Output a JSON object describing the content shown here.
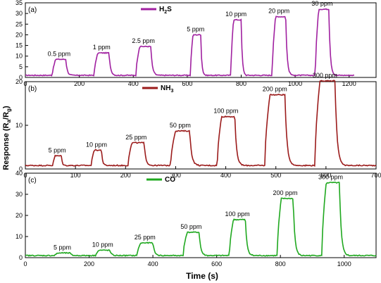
{
  "figure": {
    "ylabel_main": "Response (R",
    "ylabel_sub_a": "a",
    "ylabel_mid": "/R",
    "ylabel_sub_g": "g",
    "ylabel_end": ")",
    "xlabel": "Time (s)"
  },
  "chart_data": [
    {
      "type": "line",
      "panel_label": "(a)",
      "legend": {
        "name_main": "H",
        "name_sub": "2",
        "name_end": "S",
        "placement": "top-center"
      },
      "color": "#a020a0",
      "xlim": [
        0,
        1300
      ],
      "ylim": [
        0,
        35
      ],
      "xticks": [
        0,
        200,
        400,
        600,
        800,
        1000,
        1200
      ],
      "yticks": [
        0,
        5,
        10,
        15,
        20,
        25,
        30,
        35
      ],
      "xtick_labels": [
        "0",
        "200",
        "400",
        "600",
        "800",
        "1000",
        "1200"
      ],
      "ytick_labels": [
        "0",
        "5",
        "10",
        "15",
        "20",
        "25",
        "30",
        "35"
      ],
      "baseline": 1.0,
      "x_end": 1220,
      "pulses": [
        {
          "label": "0.5 ppm",
          "on": 100,
          "off": 150,
          "peak": 8.5
        },
        {
          "label": "1 ppm",
          "on": 255,
          "off": 310,
          "peak": 11.5
        },
        {
          "label": "2.5 ppm",
          "on": 410,
          "off": 465,
          "peak": 14.5
        },
        {
          "label": "5 ppm",
          "on": 612,
          "off": 650,
          "peak": 20
        },
        {
          "label": "10 ppm",
          "on": 762,
          "off": 800,
          "peak": 27
        },
        {
          "label": "20 ppm",
          "on": 915,
          "off": 965,
          "peak": 28.5
        },
        {
          "label": "30 ppm",
          "on": 1075,
          "off": 1125,
          "peak": 32
        }
      ]
    },
    {
      "type": "line",
      "panel_label": "(b)",
      "legend": {
        "name_main": "NH",
        "name_sub": "3",
        "name_end": "",
        "placement": "top-center"
      },
      "color": "#9b1b1b",
      "xlim": [
        0,
        700
      ],
      "ylim": [
        0,
        20
      ],
      "xticks": [
        0,
        100,
        200,
        300,
        400,
        500,
        600,
        700
      ],
      "yticks": [
        0,
        10,
        20
      ],
      "xtick_labels": [
        "0",
        "100",
        "200",
        "300",
        "400",
        "500",
        "600",
        "700"
      ],
      "ytick_labels": [
        "0",
        "10",
        "20"
      ],
      "baseline": 0.8,
      "x_end": 700,
      "pulses": [
        {
          "label": "5 ppm",
          "on": 55,
          "off": 72,
          "peak": 3.0
        },
        {
          "label": "10 ppm",
          "on": 132,
          "off": 152,
          "peak": 4.3
        },
        {
          "label": "25 ppm",
          "on": 205,
          "off": 237,
          "peak": 6.0
        },
        {
          "label": "50 ppm",
          "on": 290,
          "off": 328,
          "peak": 8.7
        },
        {
          "label": "100 ppm",
          "on": 383,
          "off": 418,
          "peak": 12.0
        },
        {
          "label": "200 ppm",
          "on": 478,
          "off": 518,
          "peak": 17.0
        },
        {
          "label": "300 ppm",
          "on": 578,
          "off": 618,
          "peak": 20.2
        }
      ]
    },
    {
      "type": "line",
      "panel_label": "(c)",
      "legend": {
        "name_main": "CO",
        "name_sub": "",
        "name_end": "",
        "placement": "top-center"
      },
      "color": "#1fa81f",
      "xlim": [
        0,
        1100
      ],
      "ylim": [
        0,
        40
      ],
      "xticks": [
        0,
        200,
        400,
        600,
        800,
        1000
      ],
      "yticks": [
        0,
        10,
        20,
        30,
        40
      ],
      "xtick_labels": [
        "0",
        "200",
        "400",
        "600",
        "800",
        "1000"
      ],
      "ytick_labels": [
        "0",
        "10",
        "20",
        "30",
        "40"
      ],
      "baseline": 1.0,
      "x_end": 1100,
      "pulses": [
        {
          "label": "5 ppm",
          "on": 92,
          "off": 140,
          "peak": 2.2
        },
        {
          "label": "10 ppm",
          "on": 220,
          "off": 265,
          "peak": 3.5
        },
        {
          "label": "25 ppm",
          "on": 350,
          "off": 400,
          "peak": 7.0
        },
        {
          "label": "50 ppm",
          "on": 495,
          "off": 545,
          "peak": 12.0
        },
        {
          "label": "100 ppm",
          "on": 640,
          "off": 690,
          "peak": 18.0
        },
        {
          "label": "200 ppm",
          "on": 790,
          "off": 840,
          "peak": 28.0
        },
        {
          "label": "300 ppm",
          "on": 930,
          "off": 985,
          "peak": 35.5
        }
      ]
    }
  ]
}
